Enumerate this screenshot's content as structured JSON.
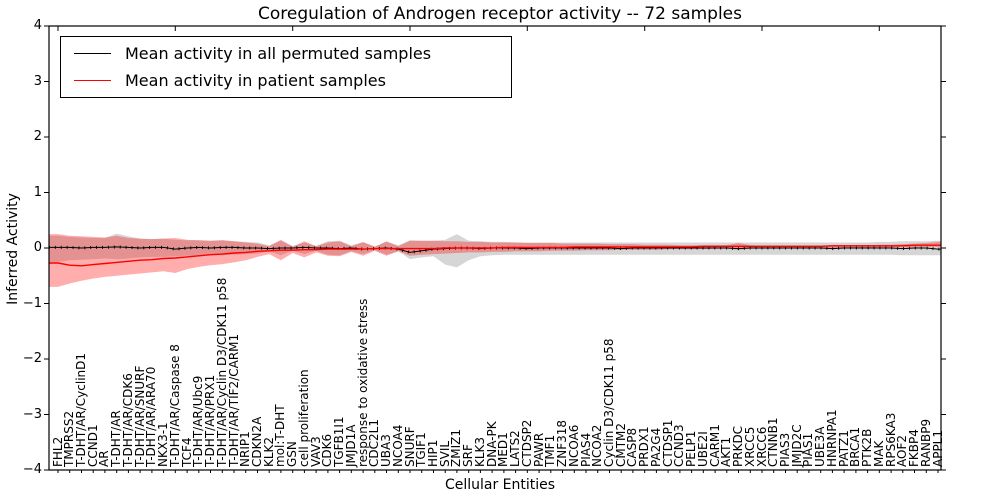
{
  "figure": {
    "title": "Coregulation of Androgen receptor activity -- 72 samples",
    "xlabel": "Cellular Entities",
    "ylabel": "Inferred Activity"
  },
  "legend": {
    "entries": [
      {
        "label": "Mean activity in all permuted samples",
        "color": "#000000"
      },
      {
        "label": "Mean activity in patient samples",
        "color": "#ff0000"
      }
    ]
  },
  "chart_data": {
    "type": "line",
    "title": "Coregulation of Androgen receptor activity -- 72 samples",
    "xlabel": "Cellular Entities",
    "ylabel": "Inferred Activity",
    "ylim": [
      -4,
      4
    ],
    "yticks": [
      -4,
      -3,
      -2,
      -1,
      0,
      1,
      2,
      3,
      4
    ],
    "grid": false,
    "legend_position": "upper left",
    "categories": [
      "FHL2",
      "TMPRSS2",
      "T-DHT/AR/CyclinD1",
      "CCND1",
      "AR",
      "T-DHT/AR",
      "T-DHT/AR/CDK6",
      "T-DHT/AR/SNURF",
      "T-DHT/AR/ARA70",
      "NKX3-1",
      "T-DHT/AR/Caspase 8",
      "TCF4",
      "T-DHT/AR/Ubc9",
      "T-DHT/AR/PRX1",
      "T-DHT/AR/Cyclin D3/CDK11 p58",
      "T-DHT/AR/TIF2/CARM1",
      "NRIP1",
      "CDKN2A",
      "KLK2",
      "mol:T-DHT",
      "GSN",
      "cell proliferation",
      "VAV3",
      "CDK6",
      "TGFB1I1",
      "JMJD1A",
      "response to oxidative stress",
      "CDC2L1",
      "UBA3",
      "NCOA4",
      "SNURF",
      "TGIF1",
      "HIP1",
      "SVIL",
      "ZMIZ1",
      "SRF",
      "KLK3",
      "DNA-PK",
      "MED1",
      "LATS2",
      "CTDSP2",
      "PAWR",
      "TMF1",
      "ZNF318",
      "NCOA6",
      "PIAS4",
      "NCOA2",
      "Cyclin D3/CDK11 p58",
      "CMTM2",
      "CASP8",
      "PRDX1",
      "PA2G4",
      "CTDSP1",
      "CCND3",
      "PELP1",
      "UBE2I",
      "CARM1",
      "AKT1",
      "PRKDC",
      "XRCC5",
      "XRCC6",
      "CTNNB1",
      "PIAS3",
      "JMJD2C",
      "PIAS1",
      "UBE3A",
      "HNRNPA1",
      "PATZ1",
      "BRCA1",
      "PTK2B",
      "MAK",
      "RPS6KA3",
      "AOF2",
      "FKBP4",
      "RANBP9",
      "APPL1"
    ],
    "series": [
      {
        "name": "Mean activity in all permuted samples",
        "color": "#000000",
        "band_color": "rgba(0,0,0,0.16)",
        "values": [
          0.01,
          0.01,
          0.0,
          0.01,
          0.01,
          0.02,
          0.01,
          0.0,
          0.01,
          0.01,
          -0.02,
          0.0,
          0.01,
          0.0,
          0.01,
          0.01,
          0.0,
          0.0,
          -0.01,
          0.0,
          0.0,
          0.01,
          0.0,
          0.0,
          -0.01,
          0.0,
          -0.02,
          -0.01,
          0.0,
          -0.02,
          -0.08,
          -0.05,
          -0.02,
          -0.01,
          0.0,
          0.0,
          -0.01,
          0.0,
          0.0,
          0.0,
          -0.01,
          0.0,
          0.0,
          0.0,
          0.0,
          0.0,
          0.0,
          0.0,
          -0.01,
          0.0,
          0.0,
          0.0,
          0.0,
          0.0,
          0.0,
          0.0,
          0.0,
          0.0,
          -0.01,
          0.0,
          0.0,
          0.0,
          0.0,
          0.0,
          0.0,
          0.0,
          -0.01,
          0.0,
          0.0,
          0.0,
          0.0,
          0.0,
          -0.01,
          0.0,
          0.0,
          -0.02
        ],
        "band_upper": [
          0.22,
          0.2,
          0.19,
          0.18,
          0.18,
          0.26,
          0.21,
          0.17,
          0.16,
          0.17,
          0.15,
          0.14,
          0.14,
          0.13,
          0.14,
          0.12,
          0.11,
          0.1,
          0.05,
          0.13,
          0.04,
          0.1,
          0.04,
          0.12,
          0.13,
          0.05,
          0.1,
          0.03,
          0.11,
          0.05,
          0.14,
          0.13,
          0.13,
          0.15,
          0.25,
          0.13,
          0.12,
          0.11,
          0.11,
          0.1,
          0.1,
          0.1,
          0.1,
          0.1,
          0.1,
          0.1,
          0.1,
          0.1,
          0.1,
          0.1,
          0.1,
          0.1,
          0.1,
          0.1,
          0.1,
          0.1,
          0.1,
          0.1,
          0.1,
          0.1,
          0.1,
          0.1,
          0.1,
          0.1,
          0.1,
          0.1,
          0.1,
          0.1,
          0.1,
          0.1,
          0.11,
          0.11,
          0.12,
          0.12,
          0.12,
          0.13
        ],
        "band_lower": [
          -0.25,
          -0.22,
          -0.21,
          -0.2,
          -0.19,
          -0.2,
          -0.19,
          -0.17,
          -0.16,
          -0.16,
          -0.15,
          -0.14,
          -0.14,
          -0.13,
          -0.13,
          -0.12,
          -0.11,
          -0.1,
          -0.06,
          -0.13,
          -0.05,
          -0.11,
          -0.05,
          -0.12,
          -0.13,
          -0.06,
          -0.11,
          -0.04,
          -0.12,
          -0.06,
          -0.2,
          -0.17,
          -0.15,
          -0.3,
          -0.35,
          -0.22,
          -0.15,
          -0.13,
          -0.12,
          -0.12,
          -0.12,
          -0.12,
          -0.12,
          -0.12,
          -0.12,
          -0.12,
          -0.12,
          -0.12,
          -0.12,
          -0.12,
          -0.12,
          -0.12,
          -0.12,
          -0.12,
          -0.12,
          -0.12,
          -0.12,
          -0.12,
          -0.12,
          -0.12,
          -0.12,
          -0.12,
          -0.12,
          -0.12,
          -0.12,
          -0.12,
          -0.12,
          -0.12,
          -0.12,
          -0.12,
          -0.12,
          -0.12,
          -0.13,
          -0.13,
          -0.13,
          -0.13
        ]
      },
      {
        "name": "Mean activity in patient samples",
        "color": "#ff0000",
        "band_color": "rgba(255,0,0,0.32)",
        "values": [
          -0.27,
          -0.31,
          -0.32,
          -0.3,
          -0.28,
          -0.26,
          -0.24,
          -0.22,
          -0.21,
          -0.19,
          -0.18,
          -0.16,
          -0.14,
          -0.12,
          -0.11,
          -0.09,
          -0.08,
          -0.06,
          -0.05,
          -0.04,
          -0.04,
          -0.03,
          -0.03,
          -0.02,
          -0.02,
          -0.02,
          -0.02,
          -0.01,
          -0.01,
          -0.01,
          -0.01,
          -0.01,
          -0.01,
          0.0,
          0.0,
          0.0,
          0.0,
          0.0,
          0.01,
          0.01,
          0.01,
          0.01,
          0.01,
          0.01,
          0.02,
          0.02,
          0.02,
          0.02,
          0.02,
          0.02,
          0.02,
          0.02,
          0.02,
          0.02,
          0.02,
          0.03,
          0.03,
          0.03,
          0.03,
          0.03,
          0.03,
          0.03,
          0.03,
          0.03,
          0.03,
          0.03,
          0.04,
          0.04,
          0.04,
          0.04,
          0.04,
          0.04,
          0.04,
          0.05,
          0.05,
          0.05
        ],
        "band_upper": [
          0.25,
          0.22,
          0.21,
          0.2,
          0.19,
          0.22,
          0.18,
          0.17,
          0.16,
          0.17,
          0.18,
          0.15,
          0.14,
          0.13,
          0.14,
          0.12,
          0.1,
          0.08,
          0.03,
          0.15,
          0.02,
          0.12,
          0.03,
          0.1,
          0.12,
          0.03,
          0.11,
          0.02,
          0.12,
          0.03,
          0.13,
          0.13,
          0.13,
          0.12,
          0.12,
          0.11,
          0.11,
          0.1,
          0.1,
          0.1,
          0.09,
          0.09,
          0.09,
          0.08,
          0.08,
          0.08,
          0.08,
          0.07,
          0.07,
          0.07,
          0.06,
          0.06,
          0.06,
          0.05,
          0.05,
          0.05,
          0.05,
          0.05,
          0.09,
          0.05,
          0.04,
          0.04,
          0.04,
          0.04,
          0.04,
          0.04,
          0.05,
          0.05,
          0.05,
          0.05,
          0.06,
          0.06,
          0.07,
          0.08,
          0.09,
          0.11
        ],
        "band_lower": [
          -0.7,
          -0.64,
          -0.59,
          -0.55,
          -0.52,
          -0.5,
          -0.48,
          -0.46,
          -0.44,
          -0.42,
          -0.45,
          -0.38,
          -0.34,
          -0.31,
          -0.29,
          -0.26,
          -0.22,
          -0.16,
          -0.11,
          -0.22,
          -0.09,
          -0.17,
          -0.08,
          -0.14,
          -0.15,
          -0.07,
          -0.14,
          -0.05,
          -0.14,
          -0.06,
          -0.14,
          -0.12,
          -0.11,
          -0.1,
          -0.09,
          -0.08,
          -0.08,
          -0.07,
          -0.07,
          -0.06,
          -0.06,
          -0.06,
          -0.05,
          -0.05,
          -0.05,
          -0.04,
          -0.04,
          -0.04,
          -0.03,
          -0.03,
          -0.03,
          -0.03,
          -0.02,
          -0.02,
          -0.02,
          -0.02,
          -0.01,
          -0.01,
          -0.03,
          -0.01,
          -0.01,
          -0.01,
          -0.01,
          -0.01,
          0.0,
          0.0,
          0.0,
          0.0,
          0.0,
          0.0,
          0.01,
          0.01,
          0.01,
          0.01,
          0.02,
          0.02
        ]
      }
    ]
  }
}
